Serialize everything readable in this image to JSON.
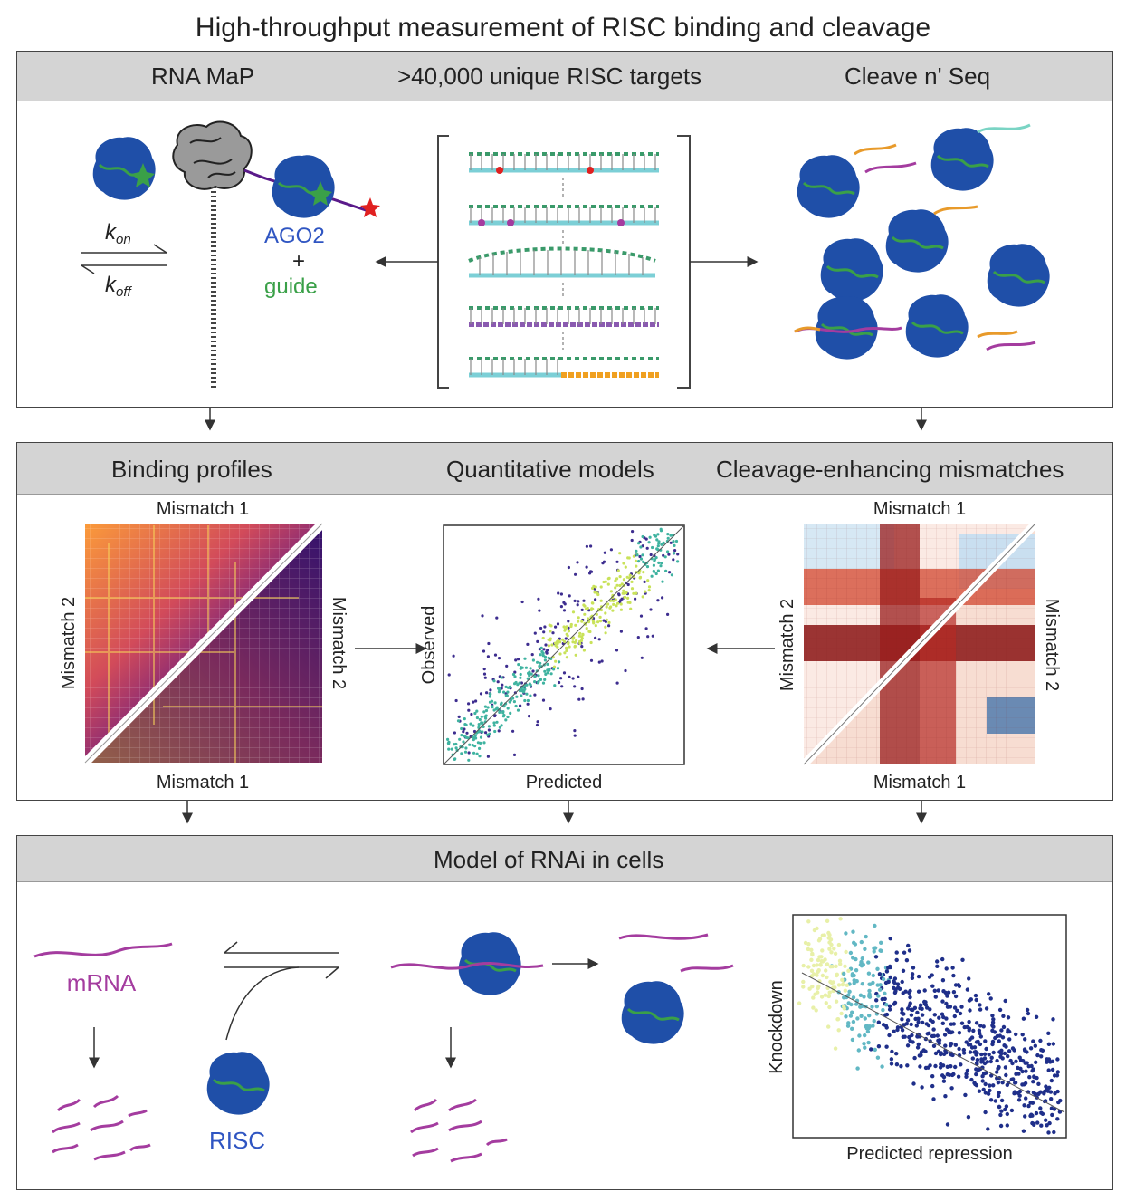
{
  "title": "High-throughput measurement of RISC binding and cleavage",
  "panel1": {
    "headers": [
      "RNA MaP",
      ">40,000 unique RISC targets",
      "Cleave n' Seq"
    ],
    "k_on": "k",
    "k_on_sub": "on",
    "k_off": "k",
    "k_off_sub": "off",
    "ago2": "AGO2",
    "plus": "+",
    "guide": "guide"
  },
  "panel2": {
    "headers": [
      "Binding profiles",
      "Quantitative models",
      "Cleavage-enhancing mismatches"
    ],
    "left_top": "Mismatch 1",
    "left_bottom": "Mismatch 1",
    "left_side_l": "Mismatch 2",
    "left_side_r": "Mismatch 2",
    "mid_x": "Predicted",
    "mid_y": "Observed",
    "right_top": "Mismatch 1",
    "right_bottom": "Mismatch 1",
    "right_side_l": "Mismatch 2",
    "right_side_r": "Mismatch 2"
  },
  "panel3": {
    "header": "Model of RNAi in cells",
    "mrna": "mRNA",
    "risc": "RISC",
    "scatter_x": "Predicted repression",
    "scatter_y": "Knockdown"
  },
  "colors": {
    "risc_blue": "#1f4fa8",
    "guide_green": "#3aa048",
    "mrna_magenta": "#a43c9f",
    "ago2_blue": "#2f55c2",
    "header_gray": "#d4d4d4"
  }
}
